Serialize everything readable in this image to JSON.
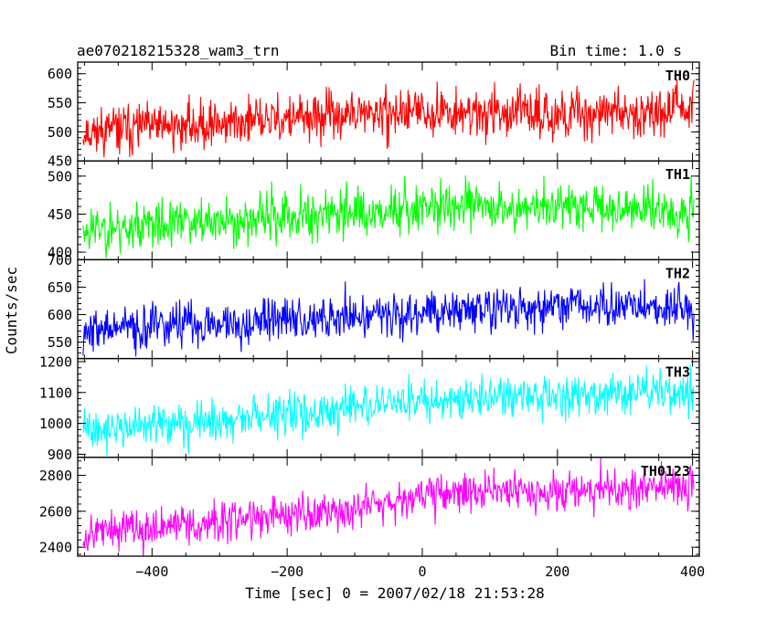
{
  "chart_data": {
    "type": "line",
    "title": "ae070218215328_wam3_trn",
    "subtitle": "Bin time: 1.0 s",
    "xlabel": "Time [sec] 0 = 2007/02/18 21:53:28",
    "ylabel": "Counts/sec",
    "xlim": [
      -510,
      410
    ],
    "xticks": [
      -400,
      -200,
      0,
      200,
      400
    ],
    "xtick_labels": [
      "−400",
      "−200",
      "0",
      "200",
      "400"
    ],
    "grid": false,
    "panels": [
      {
        "name": "TH0",
        "color": "#ff0000",
        "ylim": [
          450,
          620
        ],
        "yticks": [
          450,
          500,
          550,
          600
        ],
        "ytick_labels": [
          "450",
          "500",
          "550",
          "600"
        ],
        "trend": {
          "x": [
            -510,
            -300,
            0,
            200,
            410
          ],
          "y": [
            500,
            515,
            535,
            530,
            540
          ]
        },
        "noise_sd": 20,
        "seed": 11
      },
      {
        "name": "TH1",
        "color": "#00ff00",
        "ylim": [
          390,
          520
        ],
        "yticks": [
          400,
          450,
          500
        ],
        "ytick_labels": [
          "400",
          "450",
          "500"
        ],
        "trend": {
          "x": [
            -510,
            -300,
            0,
            200,
            410
          ],
          "y": [
            430,
            440,
            460,
            460,
            455
          ]
        },
        "noise_sd": 16,
        "seed": 23
      },
      {
        "name": "TH2",
        "color": "#0000ff",
        "ylim": [
          520,
          700
        ],
        "yticks": [
          550,
          600,
          650,
          700
        ],
        "ytick_labels": [
          "550",
          "600",
          "650",
          "700"
        ],
        "trend": {
          "x": [
            -510,
            -300,
            0,
            200,
            410
          ],
          "y": [
            570,
            585,
            605,
            615,
            610
          ]
        },
        "noise_sd": 20,
        "seed": 37
      },
      {
        "name": "TH3",
        "color": "#00ffff",
        "ylim": [
          890,
          1210
        ],
        "yticks": [
          900,
          1000,
          1100,
          1200
        ],
        "ytick_labels": [
          "900",
          "1000",
          "1100",
          "1200"
        ],
        "trend": {
          "x": [
            -510,
            -300,
            -100,
            0,
            200,
            410
          ],
          "y": [
            980,
            1005,
            1050,
            1075,
            1090,
            1105
          ]
        },
        "noise_sd": 32,
        "seed": 41
      },
      {
        "name": "TH0123",
        "color": "#ff00ff",
        "ylim": [
          2350,
          2900
        ],
        "yticks": [
          2400,
          2600,
          2800
        ],
        "ytick_labels": [
          "2400",
          "2600",
          "2800"
        ],
        "trend": {
          "x": [
            -510,
            -300,
            -100,
            0,
            200,
            410
          ],
          "y": [
            2480,
            2540,
            2620,
            2700,
            2720,
            2730
          ]
        },
        "noise_sd": 55,
        "seed": 53
      }
    ]
  }
}
